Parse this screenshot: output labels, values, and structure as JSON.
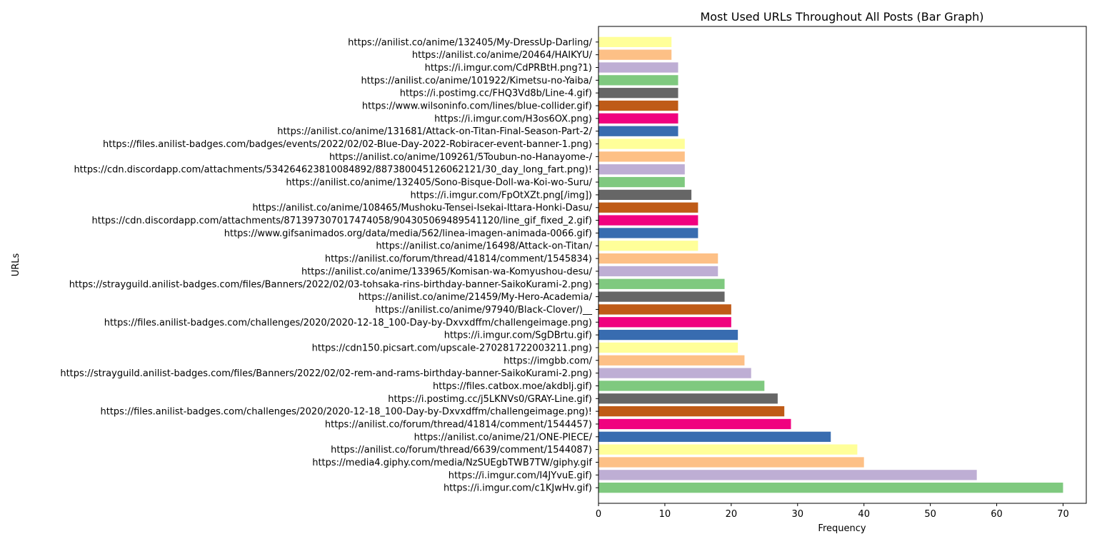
{
  "chart_data": {
    "type": "bar",
    "orientation": "horizontal",
    "title": "Most Used URLs Throughout All Posts (Bar Graph)",
    "xlabel": "Frequency",
    "ylabel": "URLs",
    "xlim": [
      0,
      73.5
    ],
    "xticks": [
      0,
      10,
      20,
      30,
      40,
      50,
      60,
      70
    ],
    "grid": false,
    "palette": [
      "#7fc97f",
      "#beaed4",
      "#fdc086",
      "#ffff99",
      "#386cb0",
      "#f0027f",
      "#bf5b17",
      "#666666"
    ],
    "categories": [
      "https://i.imgur.com/c1KJwHv.gif)",
      "https://i.imgur.com/I4JYvuE.gif)",
      "https://media4.giphy.com/media/NzSUEgbTWB7TW/giphy.gif",
      "https://anilist.co/forum/thread/6639/comment/1544087)",
      "https://anilist.co/anime/21/ONE-PIECE/",
      "https://anilist.co/forum/thread/41814/comment/1544457)",
      "https://files.anilist-badges.com/challenges/2020/2020-12-18_100-Day-by-Dxvxdffm/challengeimage.png)!",
      "https://i.postimg.cc/j5LKNVs0/GRAY-Line.gif)",
      "https://files.catbox.moe/akdblj.gif)",
      "https://strayguild.anilist-badges.com/files/Banners/2022/02/02-rem-and-rams-birthday-banner-SaikoKurami-2.png)",
      "https://imgbb.com/",
      "https://cdn150.picsart.com/upscale-270281722003211.png)",
      "https://i.imgur.com/SgDBrtu.gif)",
      "https://files.anilist-badges.com/challenges/2020/2020-12-18_100-Day-by-Dxvxdffm/challengeimage.png)",
      "https://anilist.co/anime/97940/Black-Clover/)__",
      "https://anilist.co/anime/21459/My-Hero-Academia/",
      "https://strayguild.anilist-badges.com/files/Banners/2022/02/03-tohsaka-rins-birthday-banner-SaikoKurami-2.png)",
      "https://anilist.co/anime/133965/Komisan-wa-Komyushou-desu/",
      "https://anilist.co/forum/thread/41814/comment/1545834)",
      "https://anilist.co/anime/16498/Attack-on-Titan/",
      "https://www.gifsanimados.org/data/media/562/linea-imagen-animada-0066.gif)",
      "https://cdn.discordapp.com/attachments/871397307017474058/904305069489541120/line_gif_fixed_2.gif)",
      "https://anilist.co/anime/108465/Mushoku-Tensei-Isekai-Ittara-Honki-Dasu/",
      "https://i.imgur.com/FpOtXZt.png[/img])",
      "https://anilist.co/anime/132405/Sono-Bisque-Doll-wa-Koi-wo-Suru/",
      "https://cdn.discordapp.com/attachments/534264623810084892/887380045126062121/30_day_long_fart.png)!",
      "https://anilist.co/anime/109261/5Toubun-no-Hanayome-/",
      "https://files.anilist-badges.com/badges/events/2022/02/02-Blue-Day-2022-Robiracer-event-banner-1.png)",
      "https://anilist.co/anime/131681/Attack-on-Titan-Final-Season-Part-2/",
      "https://i.imgur.com/H3os6OX.png)",
      "https://www.wilsoninfo.com/lines/blue-collider.gif)",
      "https://i.postimg.cc/FHQ3Vd8b/Line-4.gif)",
      "https://anilist.co/anime/101922/Kimetsu-no-Yaiba/",
      "https://i.imgur.com/CdPRBtH.png?1)",
      "https://anilist.co/anime/20464/HAIKYU/",
      "https://anilist.co/anime/132405/My-DressUp-Darling/"
    ],
    "values": [
      70,
      57,
      40,
      39,
      35,
      29,
      28,
      27,
      25,
      23,
      22,
      21,
      21,
      20,
      20,
      19,
      19,
      18,
      18,
      15,
      15,
      15,
      15,
      14,
      13,
      13,
      13,
      13,
      12,
      12,
      12,
      12,
      12,
      12,
      11,
      11
    ]
  }
}
